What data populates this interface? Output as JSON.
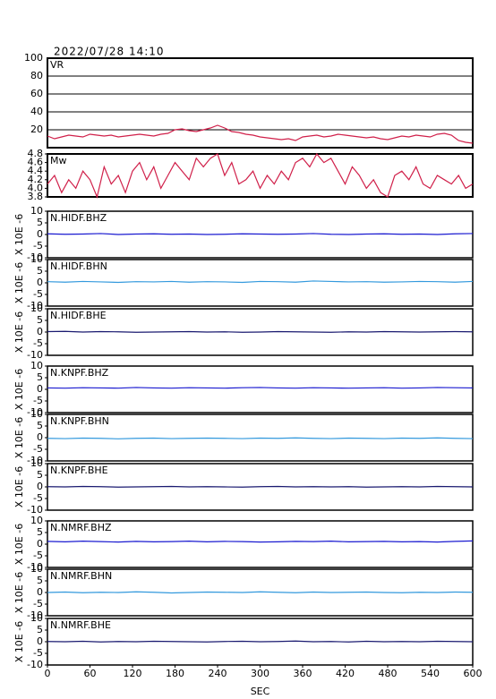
{
  "chart_data": [
    {
      "type": "line",
      "title": "2022/07/28 14:10",
      "x": [
        0,
        10,
        20,
        30,
        40,
        50,
        60,
        70,
        80,
        90,
        100,
        110,
        120,
        130,
        140,
        150,
        160,
        170,
        180,
        190,
        200,
        210,
        220,
        230,
        240,
        250,
        260,
        270,
        280,
        290,
        300,
        310,
        320,
        330,
        340,
        350,
        360,
        370,
        380,
        390,
        400,
        410,
        420,
        430,
        440,
        450,
        460,
        470,
        480,
        490,
        500,
        510,
        520,
        530,
        540,
        550,
        560,
        570,
        580,
        590,
        600
      ],
      "series": [
        {
          "name": "VR",
          "color": "#d0204a",
          "values": [
            13,
            10,
            12,
            14,
            13,
            12,
            15,
            14,
            13,
            14,
            12,
            13,
            14,
            15,
            14,
            13,
            15,
            16,
            20,
            21,
            19,
            18,
            20,
            22,
            25,
            22,
            18,
            17,
            15,
            14,
            12,
            11,
            10,
            9,
            10,
            8,
            12,
            13,
            14,
            12,
            13,
            15,
            14,
            13,
            12,
            11,
            12,
            10,
            9,
            11,
            13,
            12,
            14,
            13,
            12,
            15,
            16,
            14,
            8,
            6,
            5
          ]
        }
      ],
      "xlim": [
        0,
        600
      ],
      "ylim": [
        0,
        100
      ],
      "yticks": [
        20,
        40,
        60,
        80,
        100
      ],
      "grid": true
    },
    {
      "type": "line",
      "x": [
        0,
        10,
        20,
        30,
        40,
        50,
        60,
        70,
        80,
        90,
        100,
        110,
        120,
        130,
        140,
        150,
        160,
        170,
        180,
        190,
        200,
        210,
        220,
        230,
        240,
        250,
        260,
        270,
        280,
        290,
        300,
        310,
        320,
        330,
        340,
        350,
        360,
        370,
        380,
        390,
        400,
        410,
        420,
        430,
        440,
        450,
        460,
        470,
        480,
        490,
        500,
        510,
        520,
        530,
        540,
        550,
        560,
        570,
        580,
        590,
        600
      ],
      "series": [
        {
          "name": "Mw",
          "color": "#d0204a",
          "values": [
            4.1,
            4.3,
            3.9,
            4.2,
            4.0,
            4.4,
            4.2,
            3.8,
            4.5,
            4.1,
            4.3,
            3.9,
            4.4,
            4.6,
            4.2,
            4.5,
            4.0,
            4.3,
            4.6,
            4.4,
            4.2,
            4.7,
            4.5,
            4.7,
            4.8,
            4.3,
            4.6,
            4.1,
            4.2,
            4.4,
            4.0,
            4.3,
            4.1,
            4.4,
            4.2,
            4.6,
            4.7,
            4.5,
            4.8,
            4.6,
            4.7,
            4.4,
            4.1,
            4.5,
            4.3,
            4.0,
            4.2,
            3.9,
            3.8,
            4.3,
            4.4,
            4.2,
            4.5,
            4.1,
            4.0,
            4.3,
            4.2,
            4.1,
            4.3,
            4.0,
            4.1
          ]
        }
      ],
      "xlim": [
        0,
        600
      ],
      "ylim": [
        3.8,
        4.8
      ],
      "yticks": [
        3.8,
        {
          "value": 4,
          "label": "4.0"
        },
        4.2,
        4.4,
        4.6,
        4.8
      ],
      "grid": false
    },
    {
      "type": "line",
      "ylabel": "X 10E -6",
      "x": [
        0,
        25,
        50,
        75,
        100,
        125,
        150,
        175,
        200,
        225,
        250,
        275,
        300,
        325,
        350,
        375,
        400,
        425,
        450,
        475,
        500,
        525,
        550,
        575,
        600
      ],
      "series": [
        {
          "name": "N.HIDF.BHZ",
          "color": "#1a1ad0",
          "values": [
            0.3,
            0.1,
            0.2,
            0.4,
            0.0,
            0.2,
            0.3,
            0.1,
            0.2,
            0.0,
            0.1,
            0.3,
            0.2,
            0.1,
            0.2,
            0.4,
            0.1,
            0.0,
            0.2,
            0.3,
            0.1,
            0.2,
            0.0,
            0.3,
            0.4
          ]
        }
      ],
      "xlim": [
        0,
        600
      ],
      "ylim": [
        -10,
        10
      ],
      "yticks": [
        -10,
        -5,
        0,
        5,
        10
      ],
      "grid": false
    },
    {
      "type": "line",
      "ylabel": "X 10E -6",
      "x": [
        0,
        25,
        50,
        75,
        100,
        125,
        150,
        175,
        200,
        225,
        250,
        275,
        300,
        325,
        350,
        375,
        400,
        425,
        450,
        475,
        500,
        525,
        550,
        575,
        600
      ],
      "series": [
        {
          "name": "N.HIDF.BHN",
          "color": "#3399dd",
          "values": [
            0.5,
            0.3,
            0.6,
            0.4,
            0.2,
            0.5,
            0.4,
            0.6,
            0.3,
            0.5,
            0.4,
            0.2,
            0.6,
            0.5,
            0.3,
            0.8,
            0.6,
            0.4,
            0.5,
            0.3,
            0.4,
            0.6,
            0.5,
            0.3,
            0.6
          ]
        }
      ],
      "xlim": [
        0,
        600
      ],
      "ylim": [
        -10,
        10
      ],
      "yticks": [
        -10,
        -5,
        0,
        5,
        10
      ],
      "grid": false
    },
    {
      "type": "line",
      "ylabel": "X 10E -6",
      "x": [
        0,
        25,
        50,
        75,
        100,
        125,
        150,
        175,
        200,
        225,
        250,
        275,
        300,
        325,
        350,
        375,
        400,
        425,
        450,
        475,
        500,
        525,
        550,
        575,
        600
      ],
      "series": [
        {
          "name": "N.HIDF.BHE",
          "color": "#1a1a70",
          "values": [
            0.2,
            0.3,
            0.0,
            0.2,
            0.1,
            -0.1,
            0.0,
            0.1,
            0.2,
            0.0,
            0.1,
            -0.1,
            0.0,
            0.2,
            0.1,
            0.0,
            -0.1,
            0.1,
            0.0,
            0.2,
            0.1,
            0.0,
            0.1,
            0.2,
            0.1
          ]
        }
      ],
      "xlim": [
        0,
        600
      ],
      "ylim": [
        -10,
        10
      ],
      "yticks": [
        -10,
        -5,
        0,
        5,
        10
      ],
      "grid": false
    },
    {
      "type": "line",
      "ylabel": "X 10E -6",
      "x": [
        0,
        25,
        50,
        75,
        100,
        125,
        150,
        175,
        200,
        225,
        250,
        275,
        300,
        325,
        350,
        375,
        400,
        425,
        450,
        475,
        500,
        525,
        550,
        575,
        600
      ],
      "series": [
        {
          "name": "N.KNPF.BHZ",
          "color": "#1a1ad0",
          "values": [
            0.6,
            0.5,
            0.7,
            0.6,
            0.5,
            0.8,
            0.6,
            0.5,
            0.7,
            0.6,
            0.5,
            0.7,
            0.8,
            0.6,
            0.5,
            0.7,
            0.6,
            0.5,
            0.6,
            0.7,
            0.5,
            0.6,
            0.8,
            0.7,
            0.6
          ]
        }
      ],
      "xlim": [
        0,
        600
      ],
      "ylim": [
        -10,
        10
      ],
      "yticks": [
        -10,
        -5,
        0,
        5,
        10
      ],
      "grid": false
    },
    {
      "type": "line",
      "ylabel": "X 10E -6",
      "x": [
        0,
        25,
        50,
        75,
        100,
        125,
        150,
        175,
        200,
        225,
        250,
        275,
        300,
        325,
        350,
        375,
        400,
        425,
        450,
        475,
        500,
        525,
        550,
        575,
        600
      ],
      "series": [
        {
          "name": "N.KNPF.BHN",
          "color": "#3399dd",
          "values": [
            -0.3,
            -0.4,
            -0.2,
            -0.3,
            -0.5,
            -0.3,
            -0.2,
            -0.4,
            -0.3,
            -0.2,
            -0.3,
            -0.4,
            -0.2,
            -0.3,
            -0.1,
            -0.3,
            -0.4,
            -0.2,
            -0.3,
            -0.4,
            -0.2,
            -0.3,
            -0.1,
            -0.3,
            -0.4
          ]
        }
      ],
      "xlim": [
        0,
        600
      ],
      "ylim": [
        -10,
        10
      ],
      "yticks": [
        -10,
        -5,
        0,
        5,
        10
      ],
      "grid": false
    },
    {
      "type": "line",
      "ylabel": "X 10E -6",
      "x": [
        0,
        25,
        50,
        75,
        100,
        125,
        150,
        175,
        200,
        225,
        250,
        275,
        300,
        325,
        350,
        375,
        400,
        425,
        450,
        475,
        500,
        525,
        550,
        575,
        600
      ],
      "series": [
        {
          "name": "N.KNPF.BHE",
          "color": "#1a1a70",
          "values": [
            0.1,
            0.0,
            0.2,
            0.1,
            -0.1,
            0.0,
            0.1,
            0.2,
            0.0,
            0.1,
            0.0,
            -0.1,
            0.1,
            0.2,
            0.0,
            0.1,
            0.0,
            0.1,
            -0.1,
            0.0,
            0.1,
            0.0,
            0.2,
            0.1,
            0.0
          ]
        }
      ],
      "xlim": [
        0,
        600
      ],
      "ylim": [
        -10,
        10
      ],
      "yticks": [
        -10,
        -5,
        0,
        5,
        10
      ],
      "grid": false
    },
    {
      "type": "line",
      "ylabel": "X 10E -6",
      "x": [
        0,
        25,
        50,
        75,
        100,
        125,
        150,
        175,
        200,
        225,
        250,
        275,
        300,
        325,
        350,
        375,
        400,
        425,
        450,
        475,
        500,
        525,
        550,
        575,
        600
      ],
      "series": [
        {
          "name": "N.NMRF.BHZ",
          "color": "#1a1ad0",
          "values": [
            1.2,
            1.0,
            1.3,
            1.1,
            0.9,
            1.2,
            1.0,
            1.1,
            1.3,
            1.0,
            1.2,
            1.1,
            0.9,
            1.0,
            1.2,
            1.1,
            1.3,
            1.0,
            1.1,
            1.2,
            1.0,
            1.1,
            0.9,
            1.2,
            1.4
          ]
        }
      ],
      "xlim": [
        0,
        600
      ],
      "ylim": [
        -10,
        10
      ],
      "yticks": [
        -10,
        -5,
        0,
        5,
        10
      ],
      "grid": false
    },
    {
      "type": "line",
      "ylabel": "X 10E -6",
      "x": [
        0,
        25,
        50,
        75,
        100,
        125,
        150,
        175,
        200,
        225,
        250,
        275,
        300,
        325,
        350,
        375,
        400,
        425,
        450,
        475,
        500,
        525,
        550,
        575,
        600
      ],
      "series": [
        {
          "name": "N.NMRF.BHN",
          "color": "#3399dd",
          "values": [
            0.0,
            0.2,
            -0.1,
            0.1,
            0.0,
            0.3,
            0.1,
            -0.2,
            0.0,
            0.2,
            0.1,
            0.0,
            0.3,
            0.1,
            -0.1,
            0.2,
            0.0,
            0.1,
            0.2,
            0.0,
            -0.1,
            0.1,
            0.0,
            0.2,
            0.1
          ]
        }
      ],
      "xlim": [
        0,
        600
      ],
      "ylim": [
        -10,
        10
      ],
      "yticks": [
        -10,
        -5,
        0,
        5,
        10
      ],
      "grid": false
    },
    {
      "type": "line",
      "ylabel": "X 10E -6",
      "xlabel": "SEC",
      "x": [
        0,
        25,
        50,
        75,
        100,
        125,
        150,
        175,
        200,
        225,
        250,
        275,
        300,
        325,
        350,
        375,
        400,
        425,
        450,
        475,
        500,
        525,
        550,
        575,
        600
      ],
      "series": [
        {
          "name": "N.NMRF.BHE",
          "color": "#1a1a70",
          "values": [
            0.1,
            0.0,
            0.2,
            -0.1,
            0.1,
            0.0,
            0.2,
            0.1,
            0.0,
            -0.1,
            0.1,
            0.2,
            0.0,
            0.1,
            0.3,
            0.0,
            0.1,
            -0.1,
            0.2,
            0.0,
            0.1,
            0.0,
            0.2,
            0.1,
            0.0
          ]
        }
      ],
      "xlim": [
        0,
        600
      ],
      "xticks": [
        0,
        60,
        120,
        180,
        240,
        300,
        360,
        420,
        480,
        540,
        600
      ],
      "ylim": [
        -10,
        10
      ],
      "yticks": [
        -10,
        -5,
        0,
        5,
        10
      ],
      "grid": false
    }
  ]
}
